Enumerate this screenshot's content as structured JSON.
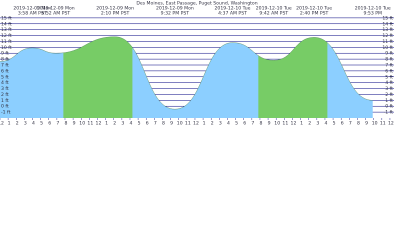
{
  "chart_data": {
    "type": "tide",
    "title": "Des Moines, East Passage, Puget Sound, Washington",
    "events": [
      {
        "date": null,
        "time": null,
        "hours": 0,
        "height": 7.6
      },
      {
        "date": "2019-12-09 Mon",
        "time": "3:58 AM PST",
        "hours": 3.97,
        "height": 9.9
      },
      {
        "date": "2019-12-09 Mon",
        "time": "6:52 AM PST",
        "hours": 6.87,
        "height": 9.0
      },
      {
        "date": "2019-12-09 Mon",
        "time": "2:10 PM PST",
        "hours": 14.17,
        "height": 11.8
      },
      {
        "date": "2019-12-09 Mon",
        "time": "9:32 PM PST",
        "hours": 21.53,
        "height": -0.5
      },
      {
        "date": "2019-12-10 Tue",
        "time": "4:37 AM PST",
        "hours": 28.62,
        "height": 10.8
      },
      {
        "date": "2019-12-10 Tue",
        "time": "9:42 AM PST",
        "hours": 33.7,
        "height": 7.8
      },
      {
        "date": "2019-12-10 Tue",
        "time": "2:40 PM PST",
        "hours": 38.67,
        "height": 11.7
      },
      {
        "date": "2019-12-10 Tue",
        "time": "9:53 PM",
        "hours": 45.88,
        "height": 1.0
      }
    ],
    "daylight": [
      [
        7.8,
        16.3
      ],
      [
        31.8,
        40.3
      ]
    ],
    "night_color": "#8ccfff",
    "day_color": "#77cc66",
    "grid_color": "#000080",
    "xlim": [
      0,
      48.5
    ],
    "xticks": [
      {
        "value": 0,
        "label": "12"
      },
      1,
      2,
      3,
      4,
      5,
      6,
      7,
      8,
      9,
      10,
      11,
      12,
      {
        "value": 13,
        "label": "1"
      },
      {
        "value": 14,
        "label": "2"
      },
      {
        "value": 15,
        "label": "3"
      },
      {
        "value": 16,
        "label": "4"
      },
      {
        "value": 17,
        "label": "5"
      },
      {
        "value": 18,
        "label": "6"
      },
      {
        "value": 19,
        "label": "7"
      },
      {
        "value": 20,
        "label": "8"
      },
      {
        "value": 21,
        "label": "9"
      },
      {
        "value": 22,
        "label": "10"
      },
      {
        "value": 23,
        "label": "11"
      },
      {
        "value": 24,
        "label": "12"
      },
      {
        "value": 25,
        "label": "1"
      },
      {
        "value": 26,
        "label": "2"
      },
      {
        "value": 27,
        "label": "3"
      },
      {
        "value": 28,
        "label": "4"
      },
      {
        "value": 29,
        "label": "5"
      },
      {
        "value": 30,
        "label": "6"
      },
      {
        "value": 31,
        "label": "7"
      },
      {
        "value": 32,
        "label": "8"
      },
      {
        "value": 33,
        "label": "9"
      },
      {
        "value": 34,
        "label": "10"
      },
      {
        "value": 35,
        "label": "11"
      },
      {
        "value": 36,
        "label": "12"
      },
      {
        "value": 37,
        "label": "1"
      },
      {
        "value": 38,
        "label": "2"
      },
      {
        "value": 39,
        "label": "3"
      },
      {
        "value": 40,
        "label": "4"
      },
      {
        "value": 41,
        "label": "5"
      },
      {
        "value": 42,
        "label": "6"
      },
      {
        "value": 43,
        "label": "7"
      },
      {
        "value": 44,
        "label": "8"
      },
      {
        "value": 45,
        "label": "9"
      },
      {
        "value": 46,
        "label": "10"
      },
      {
        "value": 47,
        "label": "11"
      },
      {
        "value": 48,
        "label": "12"
      }
    ],
    "ylim": [
      -2,
      16
    ],
    "yticks": [
      {
        "value": 15,
        "label": "15 ft"
      },
      {
        "value": 14,
        "label": "14 ft"
      },
      {
        "value": 13,
        "label": "13 ft"
      },
      {
        "value": 12,
        "label": "12 ft"
      },
      {
        "value": 11,
        "label": "11 ft"
      },
      {
        "value": 10,
        "label": "10 ft"
      },
      {
        "value": 9,
        "label": "9 ft"
      },
      {
        "value": 8,
        "label": "8 ft"
      },
      {
        "value": 7,
        "label": "7 ft"
      },
      {
        "value": 6,
        "label": "6 ft"
      },
      {
        "value": 5,
        "label": "5 ft"
      },
      {
        "value": 4,
        "label": "4 ft"
      },
      {
        "value": 3,
        "label": "3 ft"
      },
      {
        "value": 2,
        "label": "2 ft"
      },
      {
        "value": 1,
        "label": "1 ft"
      },
      {
        "value": 0,
        "label": "0 ft"
      },
      {
        "value": -1,
        "label": "-1 ft"
      }
    ]
  }
}
